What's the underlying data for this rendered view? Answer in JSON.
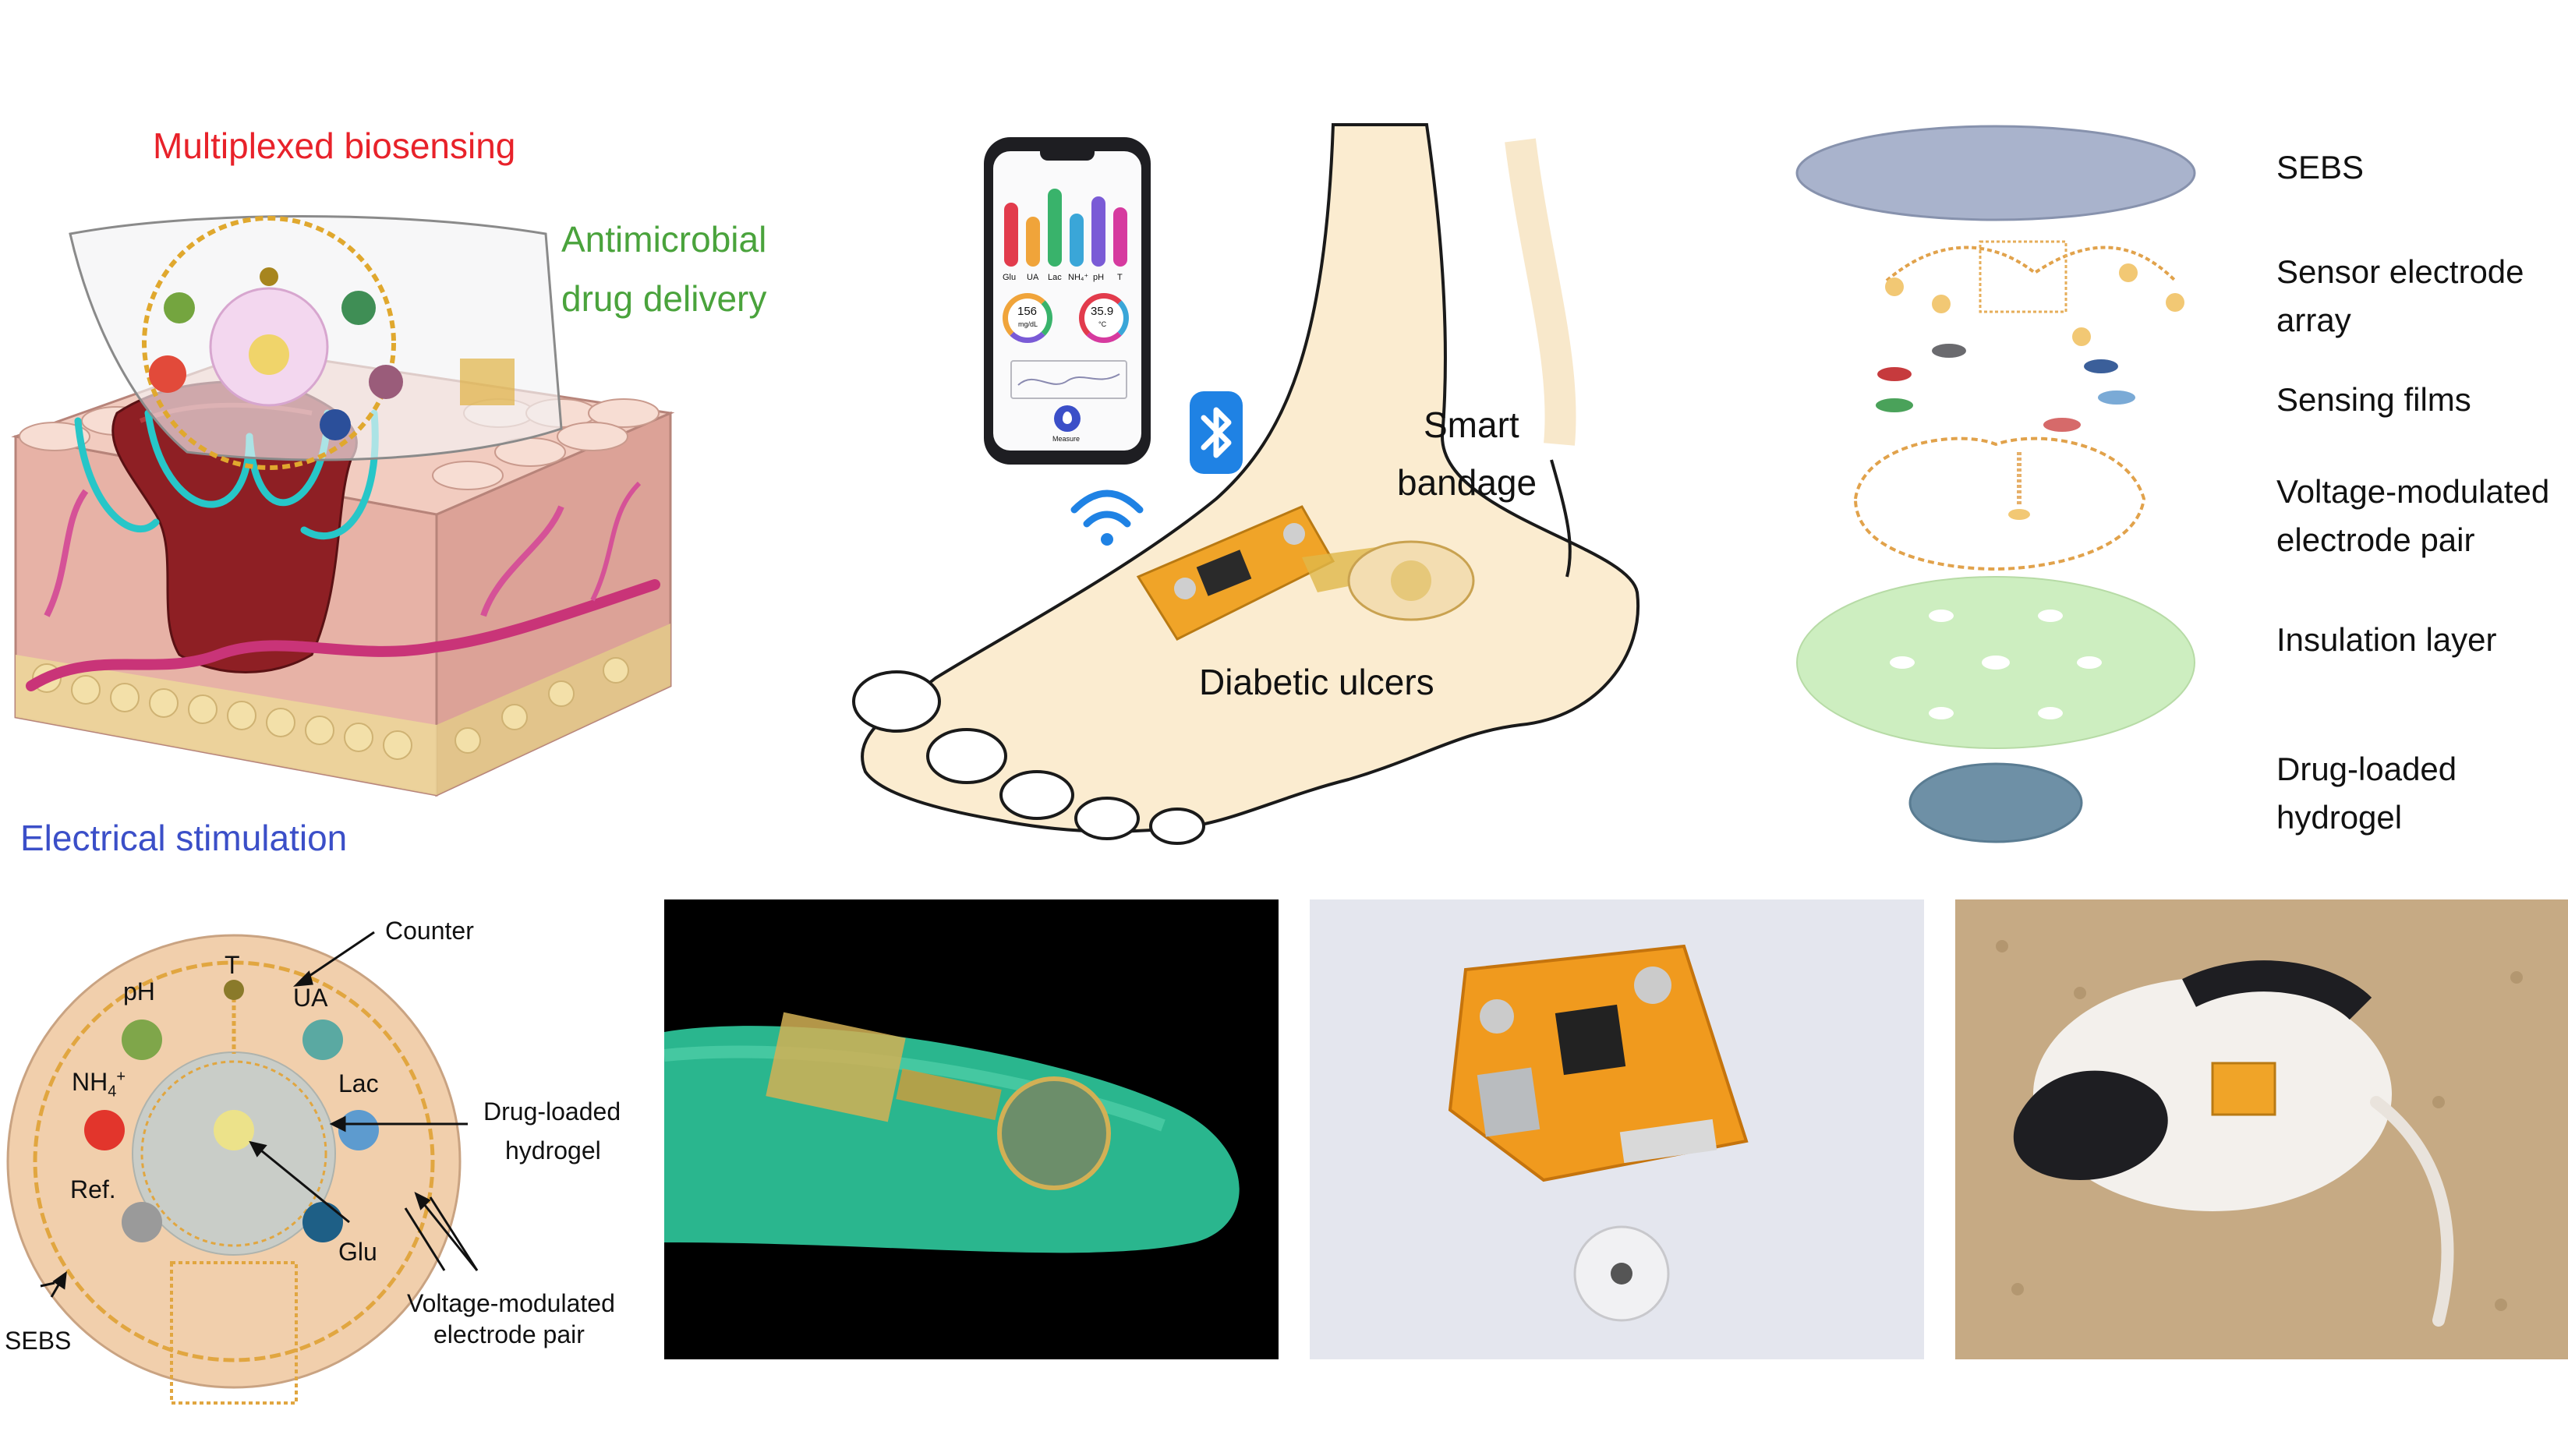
{
  "top_left": {
    "title_biosensing": "Multiplexed biosensing",
    "title_drug_delivery_line1": "Antimicrobial",
    "title_drug_delivery_line2": "drug delivery",
    "title_stimulation": "Electrical stimulation",
    "colors": {
      "biosensing": "#e8222a",
      "drug_delivery": "#4aa33c",
      "stimulation": "#3b4fc8"
    }
  },
  "center": {
    "phone": {
      "bars": [
        {
          "label": "Glu",
          "color": "#e23b4c"
        },
        {
          "label": "UA",
          "color": "#f0a43a"
        },
        {
          "label": "Lac",
          "color": "#39b36b"
        },
        {
          "label": "NH₄⁺",
          "color": "#3aa6d8"
        },
        {
          "label": "pH",
          "color": "#7a5bd6"
        },
        {
          "label": "T",
          "color": "#d63a9f"
        }
      ],
      "gauge1_value": "156",
      "gauge1_unit": "mg/dL",
      "gauge2_value": "35.9",
      "gauge2_unit": "°C",
      "button_label": "Measure"
    },
    "smart_bandage_line1": "Smart",
    "smart_bandage_line2": "bandage",
    "diabetic_ulcers": "Diabetic ulcers"
  },
  "layers": [
    {
      "line1": "SEBS",
      "line2": ""
    },
    {
      "line1": "Sensor electrode",
      "line2": "array"
    },
    {
      "line1": "Sensing films",
      "line2": ""
    },
    {
      "line1": "Voltage-modulated",
      "line2": "electrode pair"
    },
    {
      "line1": "Insulation layer",
      "line2": ""
    },
    {
      "line1": "Drug-loaded",
      "line2": "hydrogel"
    }
  ],
  "diagram": {
    "counter": "Counter",
    "t": "T",
    "ph": "pH",
    "ua": "UA",
    "nh4": "NH",
    "nh4_sub": "4",
    "nh4_sup": "+",
    "lac": "Lac",
    "ref": "Ref.",
    "glu": "Glu",
    "drug_line1": "Drug-loaded",
    "drug_line2": "hydrogel",
    "vm_line1": "Voltage-modulated",
    "vm_line2": "electrode pair",
    "sebs": "SEBS",
    "dot_colors": {
      "ph": "#7fa64a",
      "t": "#8a7a2a",
      "ua": "#5aa9a2",
      "nh4": "#e2352c",
      "lac": "#5d9bcf",
      "ref": "#9a9a9a",
      "glu": "#1e5f86",
      "center": "#ece28a"
    }
  }
}
